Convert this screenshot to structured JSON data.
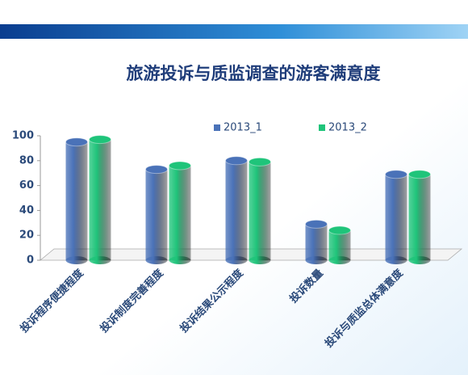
{
  "chart_data": {
    "type": "bar",
    "title": "旅游投诉与质监调查的游客满意度",
    "categories": [
      "投诉程序便捷程度",
      "投诉制度完善程度",
      "投诉结果公示程度",
      "投诉数量",
      "投诉与质监总体满意度"
    ],
    "series": [
      {
        "name": "2013_1",
        "color": "#4a72b8",
        "values": [
          95,
          73,
          80,
          29,
          69
        ]
      },
      {
        "name": "2013_2",
        "color": "#1fc47a",
        "values": [
          97,
          76,
          79,
          24,
          69
        ]
      }
    ],
    "ylim": [
      0,
      100
    ],
    "yticks": [
      0,
      20,
      40,
      60,
      80,
      100
    ],
    "legend": "top"
  }
}
